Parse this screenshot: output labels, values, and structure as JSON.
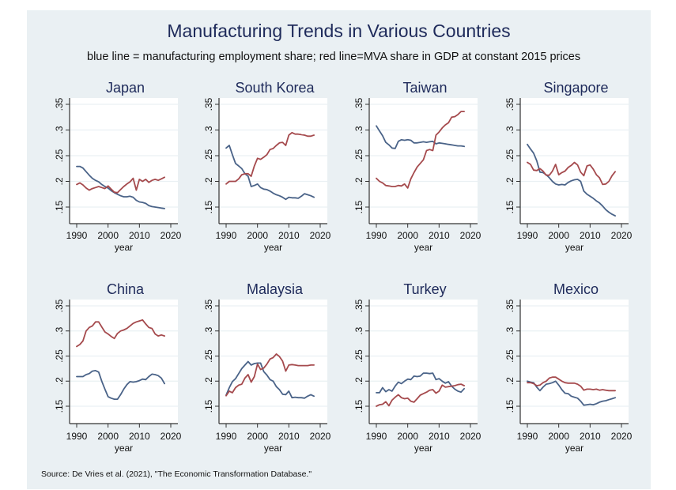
{
  "title": "Manufacturing Trends in Various Countries",
  "subtitle": "blue line = manufacturing employment share; red line=MVA share in GDP at constant 2015 prices",
  "footer": "Source: De Vries et al. (2021), \"The Economic Transformation Database.\"",
  "colors": {
    "employment": "#4a6388",
    "mva": "#a54a4d",
    "title": "#1e2a5a",
    "background": "#eaf0f3",
    "plot": "#ffffff"
  },
  "chart_data": {
    "type": "line",
    "layout": "grid 2x4",
    "x": [
      1990,
      1991,
      1992,
      1993,
      1994,
      1995,
      1996,
      1997,
      1998,
      1999,
      2000,
      2001,
      2002,
      2003,
      2004,
      2005,
      2006,
      2007,
      2008,
      2009,
      2010,
      2011,
      2012,
      2013,
      2014,
      2015,
      2016,
      2017,
      2018
    ],
    "xlabel": "year",
    "ylabel": "",
    "xlim": [
      1988,
      2022
    ],
    "ylim": [
      0.12,
      0.36
    ],
    "xticks": [
      1990,
      2000,
      2010,
      2020
    ],
    "xtick_labels": [
      "1990",
      "2000",
      "2010",
      "2020"
    ],
    "yticks": [
      0.15,
      0.2,
      0.25,
      0.3,
      0.35
    ],
    "ytick_labels": [
      ".15",
      ".2",
      ".25",
      ".3",
      ".35"
    ],
    "grid": true,
    "legend": "none (described in subtitle)",
    "series_names": {
      "employment": "manufacturing employment share",
      "mva": "MVA share in GDP at constant 2015 prices"
    },
    "panels": [
      {
        "title": "Japan",
        "employment": [
          0.229,
          0.229,
          0.226,
          0.219,
          0.212,
          0.206,
          0.202,
          0.199,
          0.194,
          0.19,
          0.187,
          0.182,
          0.178,
          0.175,
          0.172,
          0.17,
          0.17,
          0.171,
          0.169,
          0.163,
          0.16,
          0.159,
          0.157,
          0.153,
          0.151,
          0.15,
          0.149,
          0.148,
          0.147
        ],
        "mva": [
          0.194,
          0.197,
          0.193,
          0.187,
          0.183,
          0.186,
          0.188,
          0.19,
          0.188,
          0.186,
          0.191,
          0.185,
          0.179,
          0.178,
          0.184,
          0.19,
          0.195,
          0.199,
          0.206,
          0.183,
          0.204,
          0.2,
          0.204,
          0.198,
          0.202,
          0.204,
          0.202,
          0.205,
          0.208
        ]
      },
      {
        "title": "South Korea",
        "employment": [
          0.265,
          0.27,
          0.252,
          0.235,
          0.23,
          0.225,
          0.215,
          0.21,
          0.19,
          0.192,
          0.195,
          0.188,
          0.185,
          0.184,
          0.181,
          0.177,
          0.174,
          0.172,
          0.169,
          0.165,
          0.169,
          0.168,
          0.168,
          0.167,
          0.171,
          0.176,
          0.174,
          0.172,
          0.169
        ],
        "mva": [
          0.195,
          0.2,
          0.2,
          0.2,
          0.205,
          0.213,
          0.215,
          0.215,
          0.21,
          0.23,
          0.245,
          0.243,
          0.247,
          0.252,
          0.262,
          0.264,
          0.27,
          0.275,
          0.276,
          0.27,
          0.29,
          0.295,
          0.292,
          0.292,
          0.291,
          0.29,
          0.288,
          0.288,
          0.29
        ]
      },
      {
        "title": "Taiwan",
        "employment": [
          0.308,
          0.298,
          0.289,
          0.276,
          0.271,
          0.265,
          0.264,
          0.278,
          0.281,
          0.28,
          0.281,
          0.28,
          0.275,
          0.275,
          0.276,
          0.277,
          0.276,
          0.277,
          0.278,
          0.273,
          0.275,
          0.274,
          0.273,
          0.272,
          0.271,
          0.27,
          0.269,
          0.269,
          0.268
        ],
        "mva": [
          0.206,
          0.2,
          0.197,
          0.192,
          0.191,
          0.19,
          0.19,
          0.192,
          0.191,
          0.195,
          0.187,
          0.205,
          0.217,
          0.228,
          0.235,
          0.242,
          0.26,
          0.262,
          0.26,
          0.29,
          0.296,
          0.304,
          0.31,
          0.314,
          0.325,
          0.326,
          0.33,
          0.336,
          0.336
        ]
      },
      {
        "title": "Singapore",
        "employment": [
          0.272,
          0.263,
          0.255,
          0.24,
          0.218,
          0.217,
          0.213,
          0.207,
          0.2,
          0.195,
          0.193,
          0.194,
          0.193,
          0.198,
          0.201,
          0.203,
          0.204,
          0.2,
          0.181,
          0.175,
          0.171,
          0.167,
          0.162,
          0.158,
          0.152,
          0.145,
          0.14,
          0.136,
          0.133
        ],
        "mva": [
          0.237,
          0.233,
          0.222,
          0.221,
          0.225,
          0.22,
          0.212,
          0.212,
          0.22,
          0.233,
          0.213,
          0.217,
          0.22,
          0.227,
          0.231,
          0.237,
          0.232,
          0.218,
          0.211,
          0.23,
          0.232,
          0.224,
          0.213,
          0.207,
          0.194,
          0.195,
          0.2,
          0.211,
          0.219
        ]
      },
      {
        "title": "China",
        "employment": [
          0.209,
          0.209,
          0.209,
          0.213,
          0.215,
          0.22,
          0.221,
          0.218,
          0.2,
          0.184,
          0.169,
          0.166,
          0.164,
          0.164,
          0.173,
          0.184,
          0.193,
          0.199,
          0.198,
          0.199,
          0.201,
          0.204,
          0.203,
          0.209,
          0.214,
          0.213,
          0.211,
          0.206,
          0.195
        ],
        "mva": [
          0.269,
          0.273,
          0.28,
          0.3,
          0.307,
          0.31,
          0.318,
          0.318,
          0.308,
          0.298,
          0.294,
          0.289,
          0.285,
          0.295,
          0.3,
          0.302,
          0.305,
          0.31,
          0.315,
          0.318,
          0.32,
          0.322,
          0.314,
          0.307,
          0.305,
          0.294,
          0.29,
          0.292,
          0.29
        ]
      },
      {
        "title": "Malaysia",
        "employment": [
          0.172,
          0.187,
          0.199,
          0.205,
          0.215,
          0.225,
          0.232,
          0.239,
          0.232,
          0.235,
          0.236,
          0.236,
          0.219,
          0.212,
          0.203,
          0.2,
          0.189,
          0.183,
          0.174,
          0.173,
          0.18,
          0.167,
          0.168,
          0.167,
          0.167,
          0.166,
          0.17,
          0.173,
          0.17
        ],
        "mva": [
          0.171,
          0.18,
          0.177,
          0.187,
          0.192,
          0.194,
          0.206,
          0.213,
          0.198,
          0.209,
          0.234,
          0.223,
          0.226,
          0.234,
          0.244,
          0.247,
          0.254,
          0.249,
          0.24,
          0.22,
          0.232,
          0.233,
          0.232,
          0.231,
          0.231,
          0.231,
          0.231,
          0.232,
          0.232
        ]
      },
      {
        "title": "Turkey",
        "employment": [
          0.177,
          0.177,
          0.187,
          0.179,
          0.183,
          0.18,
          0.19,
          0.198,
          0.195,
          0.2,
          0.204,
          0.203,
          0.21,
          0.209,
          0.21,
          0.216,
          0.216,
          0.215,
          0.216,
          0.203,
          0.205,
          0.2,
          0.196,
          0.199,
          0.19,
          0.184,
          0.18,
          0.178,
          0.185
        ],
        "mva": [
          0.15,
          0.153,
          0.154,
          0.159,
          0.151,
          0.162,
          0.168,
          0.173,
          0.167,
          0.165,
          0.166,
          0.16,
          0.158,
          0.165,
          0.172,
          0.175,
          0.178,
          0.182,
          0.183,
          0.176,
          0.18,
          0.192,
          0.188,
          0.189,
          0.19,
          0.191,
          0.193,
          0.194,
          0.191
        ]
      },
      {
        "title": "Mexico",
        "employment": [
          0.2,
          0.198,
          0.197,
          0.188,
          0.181,
          0.188,
          0.194,
          0.195,
          0.197,
          0.2,
          0.192,
          0.183,
          0.176,
          0.175,
          0.17,
          0.168,
          0.166,
          0.16,
          0.152,
          0.153,
          0.154,
          0.153,
          0.155,
          0.158,
          0.16,
          0.161,
          0.163,
          0.165,
          0.167
        ],
        "mva": [
          0.197,
          0.197,
          0.195,
          0.191,
          0.192,
          0.197,
          0.2,
          0.206,
          0.208,
          0.208,
          0.204,
          0.2,
          0.197,
          0.196,
          0.196,
          0.196,
          0.194,
          0.19,
          0.182,
          0.184,
          0.184,
          0.183,
          0.184,
          0.182,
          0.183,
          0.182,
          0.181,
          0.181,
          0.181
        ]
      }
    ]
  }
}
